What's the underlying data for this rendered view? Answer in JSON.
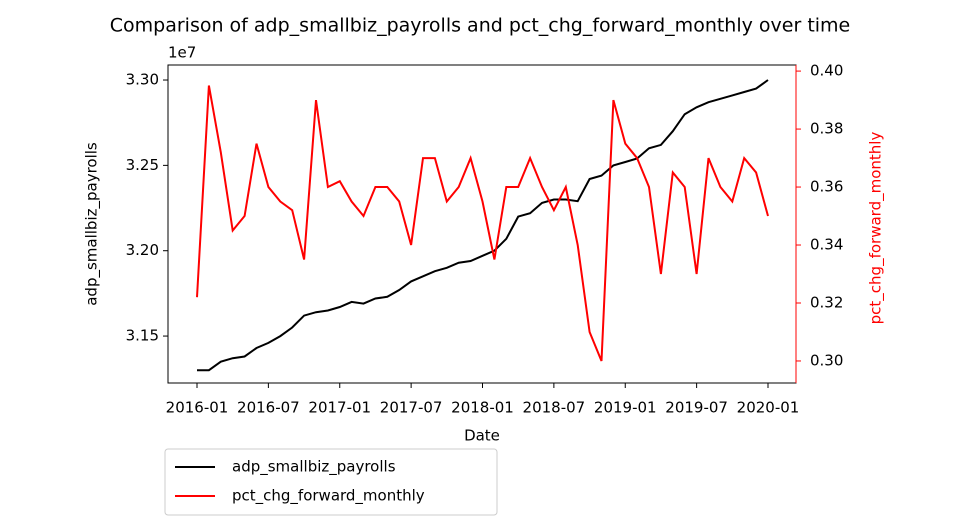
{
  "chart_data": {
    "type": "line",
    "title": "Comparison of adp_smallbiz_payrolls and pct_chg_forward_monthly over time",
    "x_label": "Date",
    "y_label": "adp_smallbiz_payrolls",
    "y2_label": "pct_chg_forward_monthly",
    "y_offset_label": "1e7",
    "x": [
      "2016-01",
      "2016-02",
      "2016-03",
      "2016-04",
      "2016-05",
      "2016-06",
      "2016-07",
      "2016-08",
      "2016-09",
      "2016-10",
      "2016-11",
      "2016-12",
      "2017-01",
      "2017-02",
      "2017-03",
      "2017-04",
      "2017-05",
      "2017-06",
      "2017-07",
      "2017-08",
      "2017-09",
      "2017-10",
      "2017-11",
      "2017-12",
      "2018-01",
      "2018-02",
      "2018-03",
      "2018-04",
      "2018-05",
      "2018-06",
      "2018-07",
      "2018-08",
      "2018-09",
      "2018-10",
      "2018-11",
      "2018-12",
      "2019-01",
      "2019-02",
      "2019-03",
      "2019-04",
      "2019-05",
      "2019-06",
      "2019-07",
      "2019-08",
      "2019-09",
      "2019-10",
      "2019-11",
      "2019-12",
      "2020-01"
    ],
    "xticks": [
      "2016-01",
      "2016-07",
      "2017-01",
      "2017-07",
      "2018-01",
      "2018-07",
      "2019-01",
      "2019-07",
      "2020-01"
    ],
    "series": [
      {
        "name": "adp_smallbiz_payrolls",
        "color": "#000000",
        "axis": "y",
        "values": [
          31300000,
          31300000,
          31350000,
          31370000,
          31380000,
          31430000,
          31460000,
          31500000,
          31550000,
          31620000,
          31640000,
          31650000,
          31670000,
          31700000,
          31690000,
          31720000,
          31730000,
          31770000,
          31820000,
          31850000,
          31880000,
          31900000,
          31930000,
          31940000,
          31970000,
          32000000,
          32070000,
          32200000,
          32220000,
          32280000,
          32300000,
          32300000,
          32290000,
          32420000,
          32440000,
          32500000,
          32520000,
          32540000,
          32600000,
          32620000,
          32700000,
          32800000,
          32840000,
          32870000,
          32890000,
          32910000,
          32930000,
          32950000,
          33000000
        ]
      },
      {
        "name": "pct_chg_forward_monthly",
        "color": "#ff0000",
        "axis": "y2",
        "values": [
          0.322,
          0.395,
          0.372,
          0.345,
          0.35,
          0.375,
          0.36,
          0.355,
          0.352,
          0.335,
          0.39,
          0.36,
          0.362,
          0.355,
          0.35,
          0.36,
          0.36,
          0.355,
          0.34,
          0.37,
          0.37,
          0.355,
          0.36,
          0.37,
          0.355,
          0.335,
          0.36,
          0.36,
          0.37,
          0.36,
          0.352,
          0.36,
          0.34,
          0.31,
          0.3,
          0.39,
          0.375,
          0.37,
          0.36,
          0.33,
          0.365,
          0.36,
          0.33,
          0.37,
          0.36,
          0.355,
          0.37,
          0.365,
          0.35
        ]
      }
    ],
    "ylim": [
      31225000,
      33088000
    ],
    "yticks": [
      {
        "value": 31500000,
        "label": "3.15"
      },
      {
        "value": 32000000,
        "label": "3.20"
      },
      {
        "value": 32500000,
        "label": "3.25"
      },
      {
        "value": 33000000,
        "label": "3.30"
      }
    ],
    "y2lim": [
      0.2924,
      0.4021
    ],
    "y2ticks": [
      {
        "value": 0.3,
        "label": "0.30"
      },
      {
        "value": 0.32,
        "label": "0.32"
      },
      {
        "value": 0.34,
        "label": "0.34"
      },
      {
        "value": 0.36,
        "label": "0.36"
      },
      {
        "value": 0.38,
        "label": "0.38"
      },
      {
        "value": 0.4,
        "label": "0.40"
      }
    ],
    "legend": "below-left"
  }
}
